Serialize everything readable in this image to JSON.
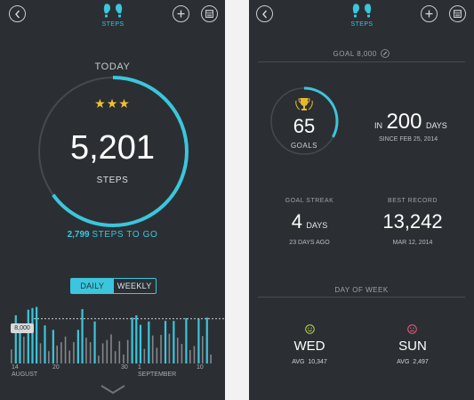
{
  "left": {
    "tab_label": "STEPS",
    "today_label": "TODAY",
    "stars": "★★★",
    "steps_value": "5,201",
    "steps_label": "STEPS",
    "remaining_value": "2,799",
    "remaining_label": "STEPS TO GO",
    "progress": 0.65,
    "toggle": {
      "daily": "DAILY",
      "weekly": "WEEKLY",
      "selected": "DAILY"
    },
    "chart_data": {
      "type": "bar",
      "goal_label": "8,000",
      "goal": 8000,
      "x_tick_labels": [
        "14",
        "20",
        "30",
        "1",
        "10"
      ],
      "month_labels": [
        "AUGUST",
        "SEPTEMBER"
      ],
      "values": [
        2500,
        8600,
        6200,
        4800,
        9600,
        9900,
        10100,
        3600,
        6800,
        2200,
        6000,
        3200,
        3800,
        4800,
        2300,
        3800,
        6000,
        9700,
        4600,
        3800,
        7500,
        1400,
        3600,
        4200,
        5201,
        2200,
        4000,
        1600,
        4200,
        8200,
        8600,
        6900,
        2600,
        7500,
        5000,
        2800,
        5100,
        7600,
        5300,
        7600,
        4600,
        3500,
        8100,
        2400,
        3100,
        8000,
        4900,
        8200,
        1600
      ],
      "highlight_color": "#3bc6dd",
      "muted_color": "#80878d"
    }
  },
  "right": {
    "tab_label": "STEPS",
    "goal_header": "GOAL 8,000",
    "goals_count": "65",
    "goals_label": "GOALS",
    "goals_progress": 0.33,
    "in_label": "IN",
    "days_value": "200",
    "days_label": "DAYS",
    "since_label": "SINCE FEB 25, 2014",
    "streak_label": "GOAL STREAK",
    "streak_value": "4",
    "streak_unit": "DAYS",
    "streak_sub": "23 DAYS AGO",
    "record_label": "BEST RECORD",
    "record_value": "13,242",
    "record_sub": "MAR 12, 2014",
    "dow_header": "DAY OF WEEK",
    "best_day": {
      "name": "WED",
      "avg": "AVG  10,347",
      "color": "#b8d94a"
    },
    "worst_day": {
      "name": "SUN",
      "avg": "AVG  2,497",
      "color": "#e5607a"
    }
  },
  "colors": {
    "accent": "#3bc6dd",
    "background": "#2b2f33",
    "trophy": "#e3b92c"
  }
}
